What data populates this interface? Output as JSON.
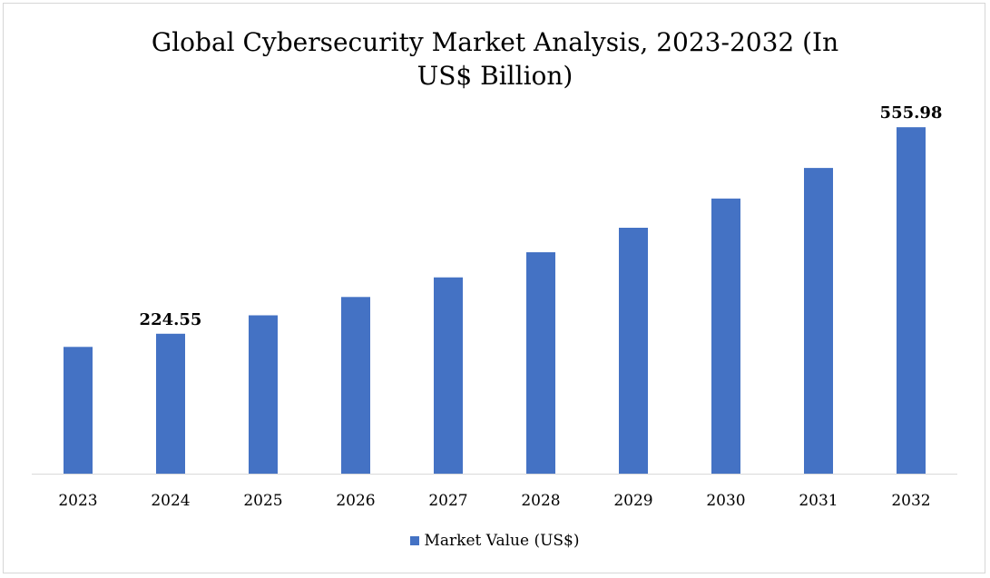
{
  "chart_data": {
    "type": "bar",
    "title_lines": [
      "Global Cybersecurity Market Analysis, 2023-2032 (In",
      "US$ Billion)"
    ],
    "categories": [
      "2023",
      "2024",
      "2025",
      "2026",
      "2027",
      "2028",
      "2029",
      "2030",
      "2031",
      "2032"
    ],
    "series": [
      {
        "name": "Market Value (US$)",
        "values": [
          203.5,
          224.55,
          254.1,
          283.6,
          315.0,
          355.4,
          394.6,
          441.5,
          490.6,
          555.98
        ],
        "color": "#4472C4"
      }
    ],
    "data_labels": [
      {
        "category": "2024",
        "text": "224.55"
      },
      {
        "category": "2032",
        "text": "555.98"
      }
    ],
    "ylim": [
      0,
      600
    ],
    "grid": false,
    "legend_position": "bottom",
    "xlabel": "",
    "ylabel": ""
  }
}
